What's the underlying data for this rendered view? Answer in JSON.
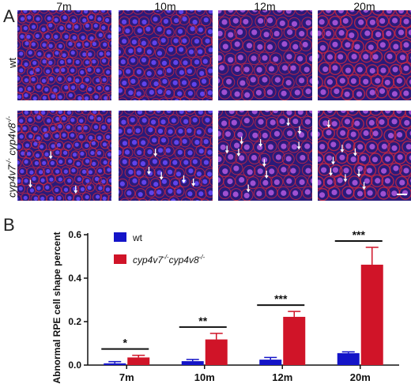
{
  "panel_a": {
    "label": "A",
    "columns": [
      "7m",
      "10m",
      "12m",
      "20m"
    ],
    "rows": [
      {
        "label": "wt",
        "arrows": [
          0,
          0,
          0,
          0
        ]
      },
      {
        "label_line1": "cyp4v7",
        "sup1": "-/-",
        "label_line2": "cyp4v8",
        "sup2": "-/-",
        "arrows": [
          3,
          5,
          10,
          8
        ]
      }
    ],
    "colors": {
      "membrane": "#d8283c",
      "nucleus": "#6a4cff",
      "background": "#2a1a7a"
    }
  },
  "panel_b": {
    "label": "B"
  },
  "chart_data": {
    "type": "bar",
    "categories": [
      "7m",
      "10m",
      "12m",
      "20m"
    ],
    "ylabel": "Abnormal RPE cell shape percent",
    "ylim": [
      0,
      0.6
    ],
    "yticks": [
      "0.0",
      "0.2",
      "0.4",
      "0.6"
    ],
    "series": [
      {
        "name": "wt",
        "color": "#1414c8",
        "values": [
          0.008,
          0.018,
          0.025,
          0.055
        ],
        "errors": [
          0.008,
          0.008,
          0.01,
          0.006
        ]
      },
      {
        "name_prefix": "cyp4v7",
        "name_sup1": "-/-",
        "name_mid": "cyp4v8",
        "name_sup2": "-/-",
        "color": "#d01428",
        "values": [
          0.035,
          0.118,
          0.222,
          0.462
        ],
        "errors": [
          0.01,
          0.028,
          0.025,
          0.08
        ]
      }
    ],
    "significance": [
      "*",
      "**",
      "***",
      "***"
    ],
    "legend_position": "top-left"
  }
}
